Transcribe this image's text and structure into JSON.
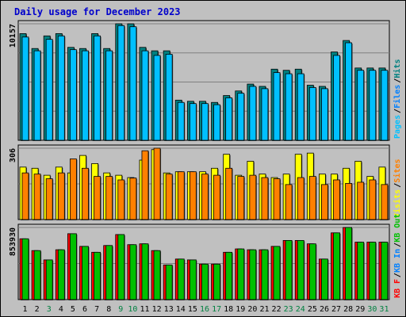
{
  "title": "Daily usage for December 2023",
  "colors": {
    "background": "#c0c0c0",
    "panel": "#c0c0c0",
    "title": "#0000cc",
    "pages": "#00c0ff",
    "files": "#0080ff",
    "hits": "#008080",
    "visits": "#ffff00",
    "sites": "#ff8000",
    "kbf": "#ff0000",
    "kbin": "#0080ff",
    "kbout": "#00c000",
    "weekday": "#000000",
    "weekend": "#008040"
  },
  "chart_data": [
    {
      "type": "bar",
      "name": "hits-files-pages",
      "ytick": "10157",
      "ymax": 10157,
      "legend": [
        {
          "label": "Pages",
          "color": "#00c0ff"
        },
        {
          "label": "Files",
          "color": "#0080ff"
        },
        {
          "label": "Hits",
          "color": "#008080"
        }
      ],
      "series": [
        {
          "name": "Hits",
          "color": "#008080",
          "values": [
            9300,
            8000,
            9100,
            9300,
            8100,
            8000,
            9300,
            8000,
            10157,
            10157,
            8100,
            7800,
            7800,
            3500,
            3400,
            3400,
            3300,
            3900,
            4300,
            4900,
            4700,
            6200,
            6100,
            6200,
            4800,
            4700,
            7700,
            8700,
            6300,
            6300,
            6300
          ]
        },
        {
          "name": "Files",
          "color": "#00c0ff",
          "values": [
            9000,
            7800,
            8800,
            9100,
            7900,
            7800,
            9100,
            7800,
            10000,
            9900,
            7800,
            7400,
            7500,
            3300,
            3200,
            3200,
            3100,
            3700,
            4100,
            4700,
            4500,
            5900,
            5800,
            5800,
            4600,
            4500,
            7400,
            8500,
            6100,
            6100,
            6100
          ]
        },
        {
          "name": "Pages",
          "color": "#0080ff",
          "values": [
            9000,
            7800,
            8800,
            9100,
            7900,
            7800,
            9100,
            7800,
            10000,
            9900,
            7800,
            7400,
            7500,
            3300,
            3200,
            3200,
            3100,
            3700,
            4100,
            4700,
            4500,
            5900,
            5800,
            5800,
            4600,
            4500,
            7400,
            8500,
            6100,
            6100,
            6100
          ]
        }
      ]
    },
    {
      "type": "bar",
      "name": "visits-sites",
      "ytick": "306",
      "ymax": 306,
      "legend": [
        {
          "label": "Visits",
          "color": "#ffff00"
        },
        {
          "label": "Sites",
          "color": "#ff8000"
        }
      ],
      "series": [
        {
          "name": "Visits",
          "color": "#ffff00",
          "values": [
            225,
            220,
            190,
            225,
            200,
            275,
            240,
            200,
            190,
            180,
            255,
            300,
            200,
            205,
            205,
            205,
            220,
            280,
            190,
            250,
            195,
            180,
            195,
            280,
            285,
            195,
            195,
            220,
            250,
            185,
            225
          ]
        },
        {
          "name": "Sites",
          "color": "#ff8000",
          "values": [
            200,
            195,
            175,
            200,
            260,
            220,
            185,
            185,
            170,
            178,
            295,
            306,
            195,
            205,
            205,
            195,
            190,
            220,
            185,
            190,
            180,
            175,
            150,
            180,
            185,
            150,
            170,
            155,
            160,
            170,
            150
          ]
        }
      ]
    },
    {
      "type": "bar",
      "name": "kbytes",
      "ytick": "853930",
      "ymax": 853930,
      "legend": [
        {
          "label": "KB F",
          "color": "#ff0000"
        },
        {
          "label": "KB In",
          "color": "#0080ff"
        },
        {
          "label": "KB Out",
          "color": "#00c000"
        }
      ],
      "series": [
        {
          "name": "KB F",
          "color": "#ff0000",
          "values": [
            720000,
            580000,
            470000,
            590000,
            780000,
            630000,
            560000,
            640000,
            770000,
            650000,
            660000,
            580000,
            410000,
            480000,
            470000,
            420000,
            420000,
            560000,
            600000,
            590000,
            590000,
            630000,
            700000,
            700000,
            660000,
            480000,
            790000,
            853930,
            680000,
            680000,
            680000
          ]
        },
        {
          "name": "KB In",
          "color": "#0080ff",
          "values": [
            0,
            0,
            0,
            0,
            0,
            0,
            0,
            0,
            0,
            0,
            0,
            0,
            0,
            0,
            0,
            0,
            0,
            0,
            0,
            0,
            0,
            0,
            0,
            0,
            0,
            0,
            0,
            0,
            0,
            0,
            0
          ]
        },
        {
          "name": "KB Out",
          "color": "#00c000",
          "values": [
            720000,
            580000,
            470000,
            590000,
            780000,
            630000,
            560000,
            640000,
            770000,
            650000,
            660000,
            580000,
            410000,
            480000,
            470000,
            420000,
            420000,
            560000,
            600000,
            590000,
            590000,
            630000,
            700000,
            700000,
            660000,
            480000,
            790000,
            853930,
            680000,
            680000,
            680000
          ]
        }
      ]
    }
  ],
  "days": [
    {
      "label": "1",
      "weekend": false
    },
    {
      "label": "2",
      "weekend": false
    },
    {
      "label": "3",
      "weekend": true
    },
    {
      "label": "4",
      "weekend": false
    },
    {
      "label": "5",
      "weekend": false
    },
    {
      "label": "6",
      "weekend": false
    },
    {
      "label": "7",
      "weekend": false
    },
    {
      "label": "8",
      "weekend": false
    },
    {
      "label": "9",
      "weekend": true
    },
    {
      "label": "10",
      "weekend": true
    },
    {
      "label": "11",
      "weekend": false
    },
    {
      "label": "12",
      "weekend": false
    },
    {
      "label": "13",
      "weekend": false
    },
    {
      "label": "14",
      "weekend": false
    },
    {
      "label": "15",
      "weekend": false
    },
    {
      "label": "16",
      "weekend": true
    },
    {
      "label": "17",
      "weekend": true
    },
    {
      "label": "18",
      "weekend": false
    },
    {
      "label": "19",
      "weekend": false
    },
    {
      "label": "20",
      "weekend": false
    },
    {
      "label": "21",
      "weekend": false
    },
    {
      "label": "22",
      "weekend": false
    },
    {
      "label": "23",
      "weekend": true
    },
    {
      "label": "24",
      "weekend": true
    },
    {
      "label": "25",
      "weekend": false
    },
    {
      "label": "26",
      "weekend": false
    },
    {
      "label": "27",
      "weekend": false
    },
    {
      "label": "28",
      "weekend": false
    },
    {
      "label": "29",
      "weekend": false
    },
    {
      "label": "30",
      "weekend": true
    },
    {
      "label": "31",
      "weekend": true
    }
  ]
}
